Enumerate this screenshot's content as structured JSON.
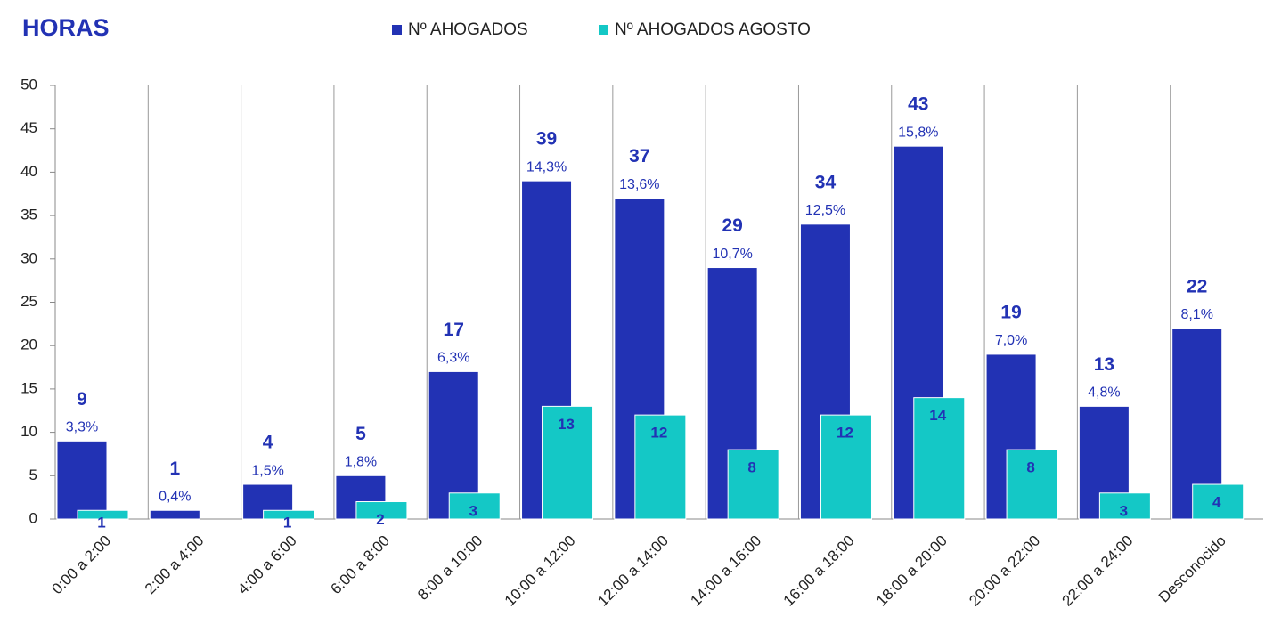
{
  "chart_data": {
    "type": "bar",
    "title": "HORAS",
    "categories": [
      "0:00 a 2:00",
      "2:00 a 4:00",
      "4:00 a 6:00",
      "6:00 a 8:00",
      "8:00 a 10:00",
      "10:00 a 12:00",
      "12:00 a 14:00",
      "14:00 a 16:00",
      "16:00 a 18:00",
      "18:00 a 20:00",
      "20:00 a 22:00",
      "22:00 a 24:00",
      "Desconocido"
    ],
    "series": [
      {
        "name": "Nº AHOGADOS",
        "color": "#2232b4",
        "values": [
          9,
          1,
          4,
          5,
          17,
          39,
          37,
          29,
          34,
          43,
          19,
          13,
          22
        ],
        "percent_labels": [
          "3,3%",
          "0,4%",
          "1,5%",
          "1,8%",
          "6,3%",
          "14,3%",
          "13,6%",
          "10,7%",
          "12,5%",
          "15,8%",
          "7,0%",
          "4,8%",
          "8,1%"
        ]
      },
      {
        "name": "Nº AHOGADOS AGOSTO",
        "color": "#14c8c6",
        "values": [
          1,
          null,
          1,
          2,
          3,
          13,
          12,
          8,
          12,
          14,
          8,
          3,
          4
        ]
      }
    ],
    "ylim": [
      0,
      50
    ],
    "yticks": [
      0,
      5,
      10,
      15,
      20,
      25,
      30,
      35,
      40,
      45,
      50
    ],
    "grid": false
  }
}
